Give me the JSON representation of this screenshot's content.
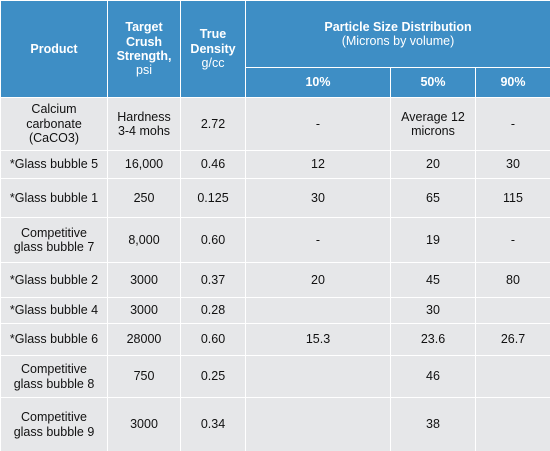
{
  "header": {
    "product": "Product",
    "crush_strength": {
      "title": "Target Crush Strength,",
      "unit": "psi"
    },
    "true_density": {
      "title": "True Density",
      "unit": "g/cc"
    },
    "psd": {
      "title": "Particle Size Distribution",
      "subtitle": "(Microns by volume)",
      "columns": [
        "10%",
        "50%",
        "90%"
      ]
    }
  },
  "table": {
    "rows": [
      [
        "Calcium carbonate (CaCO3)",
        "Hardness 3-4 mohs",
        "2.72",
        "-",
        "Average 12 microns",
        "-"
      ],
      [
        "*Glass bubble 5",
        "16,000",
        "0.46",
        "12",
        "20",
        "30"
      ],
      [
        "*Glass bubble 1",
        "250",
        "0.125",
        "30",
        "65",
        "115"
      ],
      [
        "Competitive glass bubble 7",
        "8,000",
        "0.60",
        "-",
        "19",
        "-"
      ],
      [
        "*Glass bubble 2",
        "3000",
        "0.37",
        "20",
        "45",
        "80"
      ],
      [
        "*Glass bubble 4",
        "3000",
        "0.28",
        null,
        "30",
        null
      ],
      [
        "*Glass bubble 6",
        "28000",
        "0.60",
        "15.3",
        "23.6",
        "26.7"
      ],
      [
        "Competitive glass bubble 8",
        "750",
        "0.25",
        null,
        "46",
        null
      ],
      [
        "Competitive glass bubble 9",
        "3000",
        "0.34",
        null,
        "38",
        null
      ]
    ]
  }
}
